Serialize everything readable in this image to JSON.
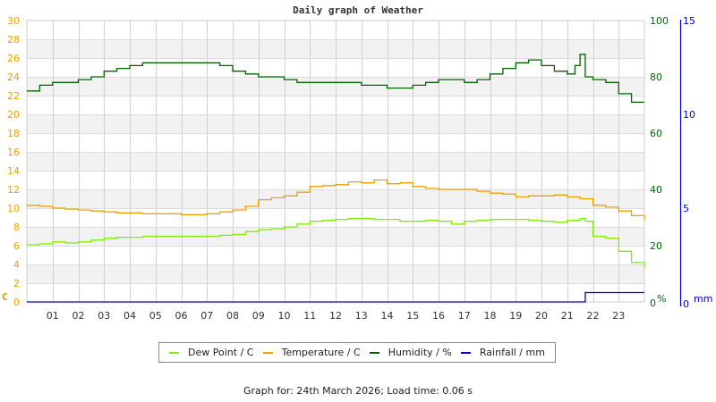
{
  "chart_data": {
    "type": "line",
    "title": "Daily graph of Weather",
    "xlabel": "",
    "x_ticks": [
      "01",
      "02",
      "03",
      "04",
      "05",
      "06",
      "07",
      "08",
      "09",
      "10",
      "11",
      "12",
      "13",
      "14",
      "15",
      "16",
      "17",
      "18",
      "19",
      "20",
      "21",
      "22",
      "23"
    ],
    "x_range_hours": [
      0,
      24
    ],
    "axes": {
      "left": {
        "label": "C",
        "range": [
          0,
          30
        ],
        "ticks": [
          0,
          2,
          4,
          6,
          8,
          10,
          12,
          14,
          16,
          18,
          20,
          22,
          24,
          26,
          28,
          30
        ],
        "color": "#f0a000"
      },
      "right1": {
        "label": "%",
        "range": [
          0,
          100
        ],
        "ticks": [
          0,
          20,
          40,
          60,
          80,
          100
        ],
        "color": "#006600"
      },
      "right2": {
        "label": "mm",
        "range": [
          0,
          15
        ],
        "ticks": [
          0,
          5,
          10,
          15
        ],
        "color": "#0000cc"
      }
    },
    "grid": true,
    "legend_position": "bottom",
    "series": [
      {
        "name": "Dew Point / C",
        "axis": "left",
        "color": "#80ee00",
        "x": [
          0,
          0.5,
          1,
          1.5,
          2,
          2.5,
          3,
          3.5,
          4,
          4.5,
          5,
          5.5,
          6,
          6.5,
          7,
          7.5,
          8,
          8.5,
          9,
          9.5,
          10,
          10.5,
          11,
          11.5,
          12,
          12.5,
          13,
          13.5,
          14,
          14.5,
          15,
          15.5,
          16,
          16.5,
          17,
          17.5,
          18,
          18.5,
          19,
          19.5,
          20,
          20.5,
          21,
          21.5,
          21.7,
          22,
          22.5,
          23,
          23.5,
          24
        ],
        "values": [
          6.1,
          6.2,
          6.4,
          6.3,
          6.4,
          6.6,
          6.8,
          6.9,
          6.9,
          7.0,
          7.0,
          7.0,
          7.0,
          7.0,
          7.0,
          7.1,
          7.2,
          7.5,
          7.7,
          7.8,
          8.0,
          8.3,
          8.6,
          8.7,
          8.8,
          8.9,
          8.9,
          8.8,
          8.8,
          8.6,
          8.6,
          8.7,
          8.6,
          8.3,
          8.6,
          8.7,
          8.8,
          8.8,
          8.8,
          8.7,
          8.6,
          8.5,
          8.7,
          8.9,
          8.6,
          7.0,
          6.8,
          5.4,
          4.2,
          3.7
        ]
      },
      {
        "name": "Temperature / C",
        "axis": "left",
        "color": "#f0a000",
        "x": [
          0,
          0.5,
          1,
          1.5,
          2,
          2.5,
          3,
          3.5,
          4,
          4.5,
          5,
          5.5,
          6,
          6.5,
          7,
          7.5,
          8,
          8.5,
          9,
          9.5,
          10,
          10.5,
          11,
          11.5,
          12,
          12.5,
          13,
          13.5,
          14,
          14.5,
          15,
          15.5,
          16,
          16.5,
          17,
          17.5,
          18,
          18.5,
          19,
          19.5,
          20,
          20.5,
          21,
          21.5,
          22,
          22.5,
          23,
          23.5,
          24
        ],
        "values": [
          10.3,
          10.2,
          10.0,
          9.9,
          9.8,
          9.7,
          9.6,
          9.5,
          9.5,
          9.4,
          9.4,
          9.4,
          9.3,
          9.3,
          9.4,
          9.6,
          9.8,
          10.2,
          10.9,
          11.1,
          11.3,
          11.7,
          12.3,
          12.4,
          12.5,
          12.8,
          12.7,
          13.0,
          12.6,
          12.7,
          12.3,
          12.1,
          12.0,
          12.0,
          12.0,
          11.8,
          11.6,
          11.5,
          11.2,
          11.3,
          11.3,
          11.4,
          11.2,
          11.0,
          10.3,
          10.1,
          9.7,
          9.2,
          8.7
        ]
      },
      {
        "name": "Humidity / %",
        "axis": "right1",
        "color": "#006600",
        "x": [
          0,
          0.5,
          1,
          1.5,
          2,
          2.5,
          3,
          3.5,
          4,
          4.5,
          5,
          5.5,
          6,
          6.5,
          7,
          7.5,
          8,
          8.5,
          9,
          9.5,
          10,
          10.5,
          11,
          11.5,
          12,
          12.5,
          13,
          13.5,
          14,
          14.5,
          15,
          15.5,
          16,
          16.5,
          17,
          17.5,
          18,
          18.5,
          19,
          19.5,
          20,
          20.5,
          21,
          21.3,
          21.5,
          21.7,
          22,
          22.5,
          23,
          23.5,
          24
        ],
        "values": [
          75,
          77,
          78,
          78,
          79,
          80,
          82,
          83,
          84,
          85,
          85,
          85,
          85,
          85,
          85,
          84,
          82,
          81,
          80,
          80,
          79,
          78,
          78,
          78,
          78,
          78,
          77,
          77,
          76,
          76,
          77,
          78,
          79,
          79,
          78,
          79,
          81,
          83,
          85,
          86,
          84,
          82,
          81,
          84,
          88,
          80,
          79,
          78,
          74,
          71,
          71
        ]
      },
      {
        "name": "Rainfall / mm",
        "axis": "right2",
        "color": "#0000cc",
        "x": [
          0,
          21.5,
          21.7,
          24
        ],
        "values": [
          0,
          0,
          0.5,
          0.5
        ]
      }
    ]
  },
  "header": {
    "title": "Daily graph of Weather"
  },
  "axes_labels": {
    "left_unit": "C",
    "humidity_unit": "%",
    "rain_unit": "mm",
    "left_ticks": [
      "0",
      "2",
      "4",
      "6",
      "8",
      "10",
      "12",
      "14",
      "16",
      "18",
      "20",
      "22",
      "24",
      "26",
      "28",
      "30"
    ],
    "humidity_ticks": [
      "0",
      "20",
      "40",
      "60",
      "80",
      "100"
    ],
    "rain_ticks": [
      "0",
      "5",
      "10",
      "15"
    ],
    "x_ticks": [
      "01",
      "02",
      "03",
      "04",
      "05",
      "06",
      "07",
      "08",
      "09",
      "10",
      "11",
      "12",
      "13",
      "14",
      "15",
      "16",
      "17",
      "18",
      "19",
      "20",
      "21",
      "22",
      "23"
    ]
  },
  "legend": {
    "items": [
      {
        "label": "Dew Point / C",
        "color": "#80ee00"
      },
      {
        "label": "Temperature / C",
        "color": "#f0a000"
      },
      {
        "label": "Humidity / %",
        "color": "#006600"
      },
      {
        "label": "Rainfall / mm",
        "color": "#0000cc"
      }
    ]
  },
  "footer": {
    "text": "Graph for: 24th March 2026; Load time: 0.06 s"
  }
}
